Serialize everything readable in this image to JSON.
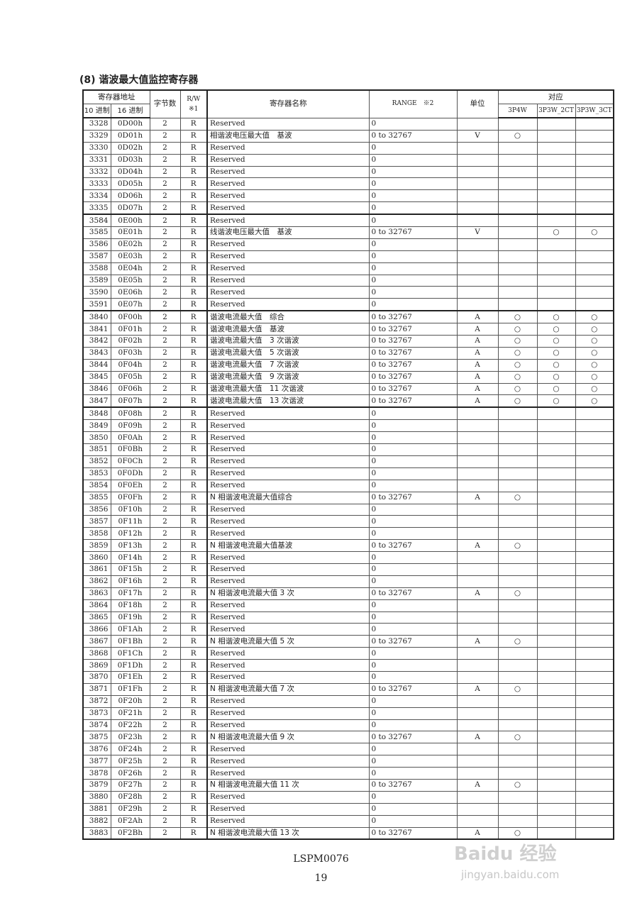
{
  "title": "(8) 谐波最大值监控寄存器",
  "header": {
    "address": "寄存器地址",
    "dec": "10 进制",
    "hex": "16 进制",
    "bytes": "字节数",
    "rw": "R/W ※1",
    "name": "寄存器名称",
    "range": "RANGE　※2",
    "unit": "单位",
    "support": "对应",
    "c1": "3P4W",
    "c2": "3P3W_2CT",
    "c3": "3P3W_3CT"
  },
  "rows": [
    [
      "3328",
      "0D00h",
      "2",
      "R",
      "Reserved",
      "0",
      "",
      "",
      "",
      ""
    ],
    [
      "3329",
      "0D01h",
      "2",
      "R",
      "相谐波电压最大值　基波",
      "0 to 32767",
      "V",
      "○",
      "",
      ""
    ],
    [
      "3330",
      "0D02h",
      "2",
      "R",
      "Reserved",
      "0",
      "",
      "",
      "",
      ""
    ],
    [
      "3331",
      "0D03h",
      "2",
      "R",
      "Reserved",
      "0",
      "",
      "",
      "",
      ""
    ],
    [
      "3332",
      "0D04h",
      "2",
      "R",
      "Reserved",
      "0",
      "",
      "",
      "",
      ""
    ],
    [
      "3333",
      "0D05h",
      "2",
      "R",
      "Reserved",
      "0",
      "",
      "",
      "",
      ""
    ],
    [
      "3334",
      "0D06h",
      "2",
      "R",
      "Reserved",
      "0",
      "",
      "",
      "",
      ""
    ],
    [
      "3335",
      "0D07h",
      "2",
      "R",
      "Reserved",
      "0",
      "",
      "",
      "",
      ""
    ],
    [
      "3584",
      "0E00h",
      "2",
      "R",
      "Reserved",
      "0",
      "",
      "",
      "",
      ""
    ],
    [
      "3585",
      "0E01h",
      "2",
      "R",
      "线谐波电压最大值　基波",
      "0 to 32767",
      "V",
      "",
      "○",
      "○"
    ],
    [
      "3586",
      "0E02h",
      "2",
      "R",
      "Reserved",
      "0",
      "",
      "",
      "",
      ""
    ],
    [
      "3587",
      "0E03h",
      "2",
      "R",
      "Reserved",
      "0",
      "",
      "",
      "",
      ""
    ],
    [
      "3588",
      "0E04h",
      "2",
      "R",
      "Reserved",
      "0",
      "",
      "",
      "",
      ""
    ],
    [
      "3589",
      "0E05h",
      "2",
      "R",
      "Reserved",
      "0",
      "",
      "",
      "",
      ""
    ],
    [
      "3590",
      "0E06h",
      "2",
      "R",
      "Reserved",
      "0",
      "",
      "",
      "",
      ""
    ],
    [
      "3591",
      "0E07h",
      "2",
      "R",
      "Reserved",
      "0",
      "",
      "",
      "",
      ""
    ],
    [
      "3840",
      "0F00h",
      "2",
      "R",
      "谐波电流最大值　综合",
      "0 to 32767",
      "A",
      "○",
      "○",
      "○"
    ],
    [
      "3841",
      "0F01h",
      "2",
      "R",
      "谐波电流最大值　基波",
      "0 to 32767",
      "A",
      "○",
      "○",
      "○"
    ],
    [
      "3842",
      "0F02h",
      "2",
      "R",
      "谐波电流最大值　3 次谐波",
      "0 to 32767",
      "A",
      "○",
      "○",
      "○"
    ],
    [
      "3843",
      "0F03h",
      "2",
      "R",
      "谐波电流最大值　5 次谐波",
      "0 to 32767",
      "A",
      "○",
      "○",
      "○"
    ],
    [
      "3844",
      "0F04h",
      "2",
      "R",
      "谐波电流最大值　7 次谐波",
      "0 to 32767",
      "A",
      "○",
      "○",
      "○"
    ],
    [
      "3845",
      "0F05h",
      "2",
      "R",
      "谐波电流最大值　9 次谐波",
      "0 to 32767",
      "A",
      "○",
      "○",
      "○"
    ],
    [
      "3846",
      "0F06h",
      "2",
      "R",
      "谐波电流最大值　11 次谐波",
      "0 to 32767",
      "A",
      "○",
      "○",
      "○"
    ],
    [
      "3847",
      "0F07h",
      "2",
      "R",
      "谐波电流最大值　13 次谐波",
      "0 to 32767",
      "A",
      "○",
      "○",
      "○"
    ],
    [
      "3848",
      "0F08h",
      "2",
      "R",
      "Reserved",
      "0",
      "",
      "",
      "",
      ""
    ],
    [
      "3849",
      "0F09h",
      "2",
      "R",
      "Reserved",
      "0",
      "",
      "",
      "",
      ""
    ],
    [
      "3850",
      "0F0Ah",
      "2",
      "R",
      "Reserved",
      "0",
      "",
      "",
      "",
      ""
    ],
    [
      "3851",
      "0F0Bh",
      "2",
      "R",
      "Reserved",
      "0",
      "",
      "",
      "",
      ""
    ],
    [
      "3852",
      "0F0Ch",
      "2",
      "R",
      "Reserved",
      "0",
      "",
      "",
      "",
      ""
    ],
    [
      "3853",
      "0F0Dh",
      "2",
      "R",
      "Reserved",
      "0",
      "",
      "",
      "",
      ""
    ],
    [
      "3854",
      "0F0Eh",
      "2",
      "R",
      "Reserved",
      "0",
      "",
      "",
      "",
      ""
    ],
    [
      "3855",
      "0F0Fh",
      "2",
      "R",
      "N 相谐波电流最大值综合",
      "0 to 32767",
      "A",
      "○",
      "",
      ""
    ],
    [
      "3856",
      "0F10h",
      "2",
      "R",
      "Reserved",
      "0",
      "",
      "",
      "",
      ""
    ],
    [
      "3857",
      "0F11h",
      "2",
      "R",
      "Reserved",
      "0",
      "",
      "",
      "",
      ""
    ],
    [
      "3858",
      "0F12h",
      "2",
      "R",
      "Reserved",
      "0",
      "",
      "",
      "",
      ""
    ],
    [
      "3859",
      "0F13h",
      "2",
      "R",
      "N 相谐波电流最大值基波",
      "0 to 32767",
      "A",
      "○",
      "",
      ""
    ],
    [
      "3860",
      "0F14h",
      "2",
      "R",
      "Reserved",
      "0",
      "",
      "",
      "",
      ""
    ],
    [
      "3861",
      "0F15h",
      "2",
      "R",
      "Reserved",
      "0",
      "",
      "",
      "",
      ""
    ],
    [
      "3862",
      "0F16h",
      "2",
      "R",
      "Reserved",
      "0",
      "",
      "",
      "",
      ""
    ],
    [
      "3863",
      "0F17h",
      "2",
      "R",
      "N 相谐波电流最大值 3 次",
      "0 to 32767",
      "A",
      "○",
      "",
      ""
    ],
    [
      "3864",
      "0F18h",
      "2",
      "R",
      "Reserved",
      "0",
      "",
      "",
      "",
      ""
    ],
    [
      "3865",
      "0F19h",
      "2",
      "R",
      "Reserved",
      "0",
      "",
      "",
      "",
      ""
    ],
    [
      "3866",
      "0F1Ah",
      "2",
      "R",
      "Reserved",
      "0",
      "",
      "",
      "",
      ""
    ],
    [
      "3867",
      "0F1Bh",
      "2",
      "R",
      "N 相谐波电流最大值 5 次",
      "0 to 32767",
      "A",
      "○",
      "",
      ""
    ],
    [
      "3868",
      "0F1Ch",
      "2",
      "R",
      "Reserved",
      "0",
      "",
      "",
      "",
      ""
    ],
    [
      "3869",
      "0F1Dh",
      "2",
      "R",
      "Reserved",
      "0",
      "",
      "",
      "",
      ""
    ],
    [
      "3870",
      "0F1Eh",
      "2",
      "R",
      "Reserved",
      "0",
      "",
      "",
      "",
      ""
    ],
    [
      "3871",
      "0F1Fh",
      "2",
      "R",
      "N 相谐波电流最大值 7 次",
      "0 to 32767",
      "A",
      "○",
      "",
      ""
    ],
    [
      "3872",
      "0F20h",
      "2",
      "R",
      "Reserved",
      "0",
      "",
      "",
      "",
      ""
    ],
    [
      "3873",
      "0F21h",
      "2",
      "R",
      "Reserved",
      "0",
      "",
      "",
      "",
      ""
    ],
    [
      "3874",
      "0F22h",
      "2",
      "R",
      "Reserved",
      "0",
      "",
      "",
      "",
      ""
    ],
    [
      "3875",
      "0F23h",
      "2",
      "R",
      "N 相谐波电流最大值 9 次",
      "0 to 32767",
      "A",
      "○",
      "",
      ""
    ],
    [
      "3876",
      "0F24h",
      "2",
      "R",
      "Reserved",
      "0",
      "",
      "",
      "",
      ""
    ],
    [
      "3877",
      "0F25h",
      "2",
      "R",
      "Reserved",
      "0",
      "",
      "",
      "",
      ""
    ],
    [
      "3878",
      "0F26h",
      "2",
      "R",
      "Reserved",
      "0",
      "",
      "",
      "",
      ""
    ],
    [
      "3879",
      "0F27h",
      "2",
      "R",
      "N 相谐波电流最大值 11 次",
      "0 to 32767",
      "A",
      "○",
      "",
      ""
    ],
    [
      "3880",
      "0F28h",
      "2",
      "R",
      "Reserved",
      "0",
      "",
      "",
      "",
      ""
    ],
    [
      "3881",
      "0F29h",
      "2",
      "R",
      "Reserved",
      "0",
      "",
      "",
      "",
      ""
    ],
    [
      "3882",
      "0F2Ah",
      "2",
      "R",
      "Reserved",
      "0",
      "",
      "",
      "",
      ""
    ],
    [
      "3883",
      "0F2Bh",
      "2",
      "R",
      "N 相谐波电流最大值 13 次",
      "0 to 32767",
      "A",
      "○",
      "",
      ""
    ]
  ],
  "separators_before": [
    "3584",
    "3840",
    "3848"
  ],
  "footer": {
    "code": "LSPM0076",
    "page": "19"
  },
  "watermark": {
    "logo": "Baidu 经验",
    "url": "jingyan.baidu.com"
  }
}
